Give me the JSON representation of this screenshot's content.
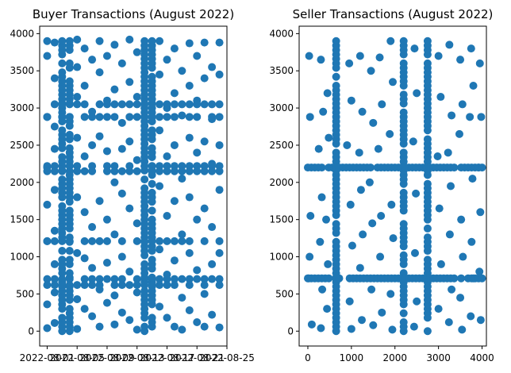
{
  "chart_data": [
    {
      "type": "scatter",
      "title": "Buyer Transactions (August 2022)",
      "xlabel": "",
      "ylabel": "",
      "x_ticks": [
        "2022-08-01",
        "2022-08-05",
        "2022-08-09",
        "2022-08-13",
        "2022-08-17",
        "2022-08-21",
        "2022-08-25"
      ],
      "y_ticks": [
        0,
        500,
        1000,
        1500,
        2000,
        2500,
        3000,
        3500,
        4000
      ],
      "xlim": [
        "2022-07-31",
        "2022-08-25"
      ],
      "ylim": [
        -200,
        4100
      ],
      "grid": false,
      "marker_color": "#1f77b4",
      "x_dense_dates": [
        "2022-08-03",
        "2022-08-04",
        "2022-08-14",
        "2022-08-15"
      ],
      "y_dense_values": [
        2220,
        2150,
        1210,
        700,
        620,
        3050,
        2880
      ],
      "points": [
        [
          "2022-08-01",
          3900
        ],
        [
          "2022-08-01",
          3700
        ],
        [
          "2022-08-01",
          2880
        ],
        [
          "2022-08-01",
          2200
        ],
        [
          "2022-08-01",
          1700
        ],
        [
          "2022-08-01",
          1210
        ],
        [
          "2022-08-01",
          700
        ],
        [
          "2022-08-01",
          360
        ],
        [
          "2022-08-01",
          40
        ],
        [
          "2022-08-02",
          3880
        ],
        [
          "2022-08-02",
          3400
        ],
        [
          "2022-08-02",
          2750
        ],
        [
          "2022-08-02",
          2450
        ],
        [
          "2022-08-02",
          1900
        ],
        [
          "2022-08-02",
          1350
        ],
        [
          "2022-08-02",
          900
        ],
        [
          "2022-08-02",
          520
        ],
        [
          "2022-08-02",
          110
        ],
        [
          "2022-08-05",
          3920
        ],
        [
          "2022-08-05",
          3550
        ],
        [
          "2022-08-05",
          3150
        ],
        [
          "2022-08-05",
          2600
        ],
        [
          "2022-08-05",
          1800
        ],
        [
          "2022-08-05",
          1050
        ],
        [
          "2022-08-05",
          430
        ],
        [
          "2022-08-05",
          30
        ],
        [
          "2022-08-06",
          3800
        ],
        [
          "2022-08-06",
          3300
        ],
        [
          "2022-08-06",
          2350
        ],
        [
          "2022-08-06",
          1600
        ],
        [
          "2022-08-06",
          980
        ],
        [
          "2022-08-06",
          300
        ],
        [
          "2022-08-07",
          3650
        ],
        [
          "2022-08-07",
          2950
        ],
        [
          "2022-08-07",
          2500
        ],
        [
          "2022-08-07",
          1400
        ],
        [
          "2022-08-07",
          850
        ],
        [
          "2022-08-07",
          200
        ],
        [
          "2022-08-08",
          3900
        ],
        [
          "2022-08-08",
          3480
        ],
        [
          "2022-08-08",
          2620
        ],
        [
          "2022-08-08",
          1750
        ],
        [
          "2022-08-08",
          560
        ],
        [
          "2022-08-08",
          60
        ],
        [
          "2022-08-09",
          3700
        ],
        [
          "2022-08-09",
          3100
        ],
        [
          "2022-08-09",
          2420
        ],
        [
          "2022-08-09",
          1500
        ],
        [
          "2022-08-09",
          920
        ],
        [
          "2022-08-09",
          380
        ],
        [
          "2022-08-10",
          3850
        ],
        [
          "2022-08-10",
          3250
        ],
        [
          "2022-08-10",
          2000
        ],
        [
          "2022-08-10",
          1300
        ],
        [
          "2022-08-10",
          480
        ],
        [
          "2022-08-10",
          90
        ],
        [
          "2022-08-11",
          3600
        ],
        [
          "2022-08-11",
          2800
        ],
        [
          "2022-08-11",
          2450
        ],
        [
          "2022-08-11",
          1850
        ],
        [
          "2022-08-11",
          1000
        ],
        [
          "2022-08-11",
          250
        ],
        [
          "2022-08-12",
          3920
        ],
        [
          "2022-08-12",
          3350
        ],
        [
          "2022-08-12",
          2550
        ],
        [
          "2022-08-12",
          1650
        ],
        [
          "2022-08-12",
          800
        ],
        [
          "2022-08-12",
          150
        ],
        [
          "2022-08-13",
          3750
        ],
        [
          "2022-08-13",
          3150
        ],
        [
          "2022-08-13",
          2300
        ],
        [
          "2022-08-13",
          1450
        ],
        [
          "2022-08-13",
          520
        ],
        [
          "2022-08-13",
          20
        ],
        [
          "2022-08-16",
          3900
        ],
        [
          "2022-08-16",
          3450
        ],
        [
          "2022-08-16",
          2700
        ],
        [
          "2022-08-16",
          1950
        ],
        [
          "2022-08-16",
          1100
        ],
        [
          "2022-08-16",
          330
        ],
        [
          "2022-08-17",
          3650
        ],
        [
          "2022-08-17",
          3000
        ],
        [
          "2022-08-17",
          2350
        ],
        [
          "2022-08-17",
          1550
        ],
        [
          "2022-08-17",
          760
        ],
        [
          "2022-08-17",
          180
        ],
        [
          "2022-08-18",
          3800
        ],
        [
          "2022-08-18",
          3200
        ],
        [
          "2022-08-18",
          2500
        ],
        [
          "2022-08-18",
          1750
        ],
        [
          "2022-08-18",
          950
        ],
        [
          "2022-08-18",
          60
        ],
        [
          "2022-08-19",
          3500
        ],
        [
          "2022-08-19",
          2900
        ],
        [
          "2022-08-19",
          2050
        ],
        [
          "2022-08-19",
          1300
        ],
        [
          "2022-08-19",
          450
        ],
        [
          "2022-08-19",
          20
        ],
        [
          "2022-08-20",
          3870
        ],
        [
          "2022-08-20",
          3300
        ],
        [
          "2022-08-20",
          2600
        ],
        [
          "2022-08-20",
          1800
        ],
        [
          "2022-08-20",
          1050
        ],
        [
          "2022-08-20",
          280
        ],
        [
          "2022-08-21",
          3700
        ],
        [
          "2022-08-21",
          3100
        ],
        [
          "2022-08-21",
          2400
        ],
        [
          "2022-08-21",
          1500
        ],
        [
          "2022-08-21",
          820
        ],
        [
          "2022-08-21",
          120
        ],
        [
          "2022-08-22",
          3880
        ],
        [
          "2022-08-22",
          3400
        ],
        [
          "2022-08-22",
          2550
        ],
        [
          "2022-08-22",
          1650
        ],
        [
          "2022-08-22",
          500
        ],
        [
          "2022-08-22",
          60
        ],
        [
          "2022-08-23",
          3550
        ],
        [
          "2022-08-23",
          2850
        ],
        [
          "2022-08-23",
          2250
        ],
        [
          "2022-08-23",
          1400
        ],
        [
          "2022-08-23",
          900
        ],
        [
          "2022-08-23",
          220
        ],
        [
          "2022-08-24",
          3880
        ],
        [
          "2022-08-24",
          3450
        ],
        [
          "2022-08-24",
          2500
        ],
        [
          "2022-08-24",
          1900
        ],
        [
          "2022-08-24",
          1050
        ],
        [
          "2022-08-24",
          50
        ]
      ]
    },
    {
      "type": "scatter",
      "title": "Seller Transactions (August 2022)",
      "xlabel": "",
      "ylabel": "",
      "x_ticks": [
        0,
        1000,
        2000,
        3000,
        4000
      ],
      "y_ticks": [
        0,
        500,
        1000,
        1500,
        2000,
        2500,
        3000,
        3500,
        4000
      ],
      "xlim": [
        -200,
        4100
      ],
      "ylim": [
        -200,
        4100
      ],
      "grid": false,
      "marker_color": "#1f77b4",
      "x_dense_values": [
        650,
        2200,
        2750
      ],
      "y_dense_values": [
        2200,
        710
      ],
      "points": [
        [
          30,
          3700
        ],
        [
          50,
          2880
        ],
        [
          80,
          2200
        ],
        [
          60,
          1550
        ],
        [
          40,
          1000
        ],
        [
          20,
          710
        ],
        [
          90,
          90
        ],
        [
          300,
          3650
        ],
        [
          350,
          2950
        ],
        [
          250,
          2450
        ],
        [
          320,
          1800
        ],
        [
          280,
          1200
        ],
        [
          330,
          560
        ],
        [
          300,
          40
        ],
        [
          450,
          3200
        ],
        [
          480,
          2600
        ],
        [
          420,
          1500
        ],
        [
          460,
          900
        ],
        [
          440,
          300
        ],
        [
          950,
          3600
        ],
        [
          1000,
          3100
        ],
        [
          900,
          2500
        ],
        [
          980,
          1700
        ],
        [
          1020,
          1150
        ],
        [
          960,
          400
        ],
        [
          1000,
          30
        ],
        [
          1200,
          3700
        ],
        [
          1250,
          2950
        ],
        [
          1180,
          2400
        ],
        [
          1220,
          1900
        ],
        [
          1260,
          1300
        ],
        [
          1200,
          850
        ],
        [
          1240,
          150
        ],
        [
          1450,
          3500
        ],
        [
          1500,
          2800
        ],
        [
          1420,
          2000
        ],
        [
          1480,
          1450
        ],
        [
          1460,
          560
        ],
        [
          1500,
          80
        ],
        [
          1650,
          3680
        ],
        [
          1700,
          3050
        ],
        [
          1620,
          2450
        ],
        [
          1680,
          1550
        ],
        [
          1660,
          1000
        ],
        [
          1700,
          250
        ],
        [
          1900,
          3900
        ],
        [
          1950,
          3350
        ],
        [
          1880,
          2650
        ],
        [
          1920,
          1700
        ],
        [
          1960,
          1250
        ],
        [
          1900,
          500
        ],
        [
          1940,
          20
        ],
        [
          2450,
          3800
        ],
        [
          2500,
          3200
        ],
        [
          2420,
          2550
        ],
        [
          2480,
          1850
        ],
        [
          2460,
          1050
        ],
        [
          2500,
          400
        ],
        [
          2440,
          60
        ],
        [
          3000,
          3700
        ],
        [
          3050,
          3150
        ],
        [
          2980,
          2350
        ],
        [
          3020,
          1650
        ],
        [
          3060,
          900
        ],
        [
          3000,
          300
        ],
        [
          3250,
          3850
        ],
        [
          3300,
          2900
        ],
        [
          3220,
          2400
        ],
        [
          3280,
          1950
        ],
        [
          3260,
          1300
        ],
        [
          3300,
          560
        ],
        [
          3240,
          120
        ],
        [
          3500,
          3650
        ],
        [
          3550,
          3050
        ],
        [
          3480,
          2650
        ],
        [
          3520,
          1500
        ],
        [
          3560,
          1000
        ],
        [
          3500,
          450
        ],
        [
          3540,
          20
        ],
        [
          3750,
          3800
        ],
        [
          3800,
          3300
        ],
        [
          3720,
          2880
        ],
        [
          3780,
          2050
        ],
        [
          3760,
          1200
        ],
        [
          3800,
          710
        ],
        [
          3740,
          200
        ],
        [
          3950,
          3600
        ],
        [
          3980,
          2880
        ],
        [
          3920,
          2200
        ],
        [
          3960,
          1600
        ],
        [
          3940,
          800
        ],
        [
          3970,
          150
        ]
      ]
    }
  ]
}
